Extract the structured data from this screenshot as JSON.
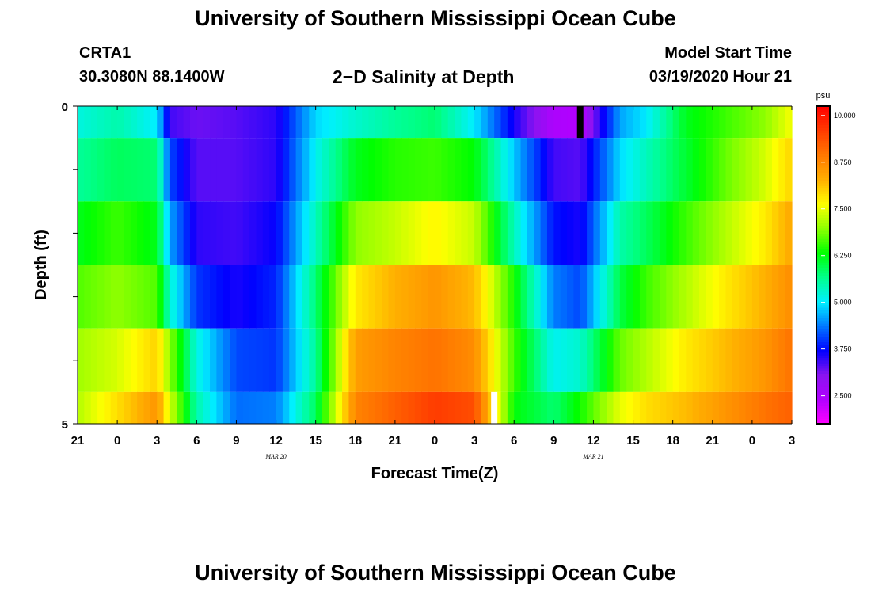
{
  "page_title": "University of Southern Mississippi Ocean Cube",
  "footer_title": "University of Southern Mississippi Ocean Cube",
  "station": {
    "name": "CRTA1",
    "coords": "30.3080N 88.1400W"
  },
  "model": {
    "label": "Model Start Time",
    "start": "03/19/2020 Hour 21"
  },
  "colors": {
    "palette": [
      "#ff00ff",
      "#b200ff",
      "#8a14f0",
      "#0000ff",
      "#0078ff",
      "#00f0ff",
      "#00ff8c",
      "#00ff00",
      "#8cff00",
      "#ffff00",
      "#ffb000",
      "#ff7800",
      "#ff3c00",
      "#ff0000"
    ],
    "marker_black": "#000000",
    "marker_white": "#ffffff"
  },
  "chart_data": {
    "type": "heatmap",
    "title": "2−D Salinity at Depth",
    "xlabel": "Forecast Time(Z)",
    "ylabel": "Depth (ft)",
    "x_tick_labels": [
      "21",
      "0",
      "3",
      "6",
      "9",
      "12",
      "15",
      "18",
      "21",
      "0",
      "3",
      "6",
      "9",
      "12",
      "15",
      "18",
      "21",
      "0",
      "3"
    ],
    "date_labels": [
      {
        "text": "MAR 20",
        "hour": 15
      },
      {
        "text": "MAR 21",
        "hour": 39
      }
    ],
    "x_range_hours": [
      0,
      54
    ],
    "y_range_ft": [
      0,
      5
    ],
    "y_tick_labels": [
      "0",
      "5"
    ],
    "y_minor_ticks": [
      0,
      1,
      2,
      3,
      4,
      5
    ],
    "depth_levels": [
      0,
      1,
      2,
      3,
      4,
      5
    ],
    "time_knots_hours": [
      0,
      3,
      6,
      7,
      9,
      12,
      15,
      18,
      21,
      24,
      27,
      30,
      33,
      36,
      38,
      41,
      43,
      46,
      49,
      52,
      54
    ],
    "values": [
      [
        5.2,
        5.5,
        5.0,
        3.4,
        3.2,
        3.3,
        3.5,
        4.9,
        5.3,
        5.6,
        5.8,
        5.0,
        3.6,
        2.5,
        2.4,
        4.6,
        5.0,
        6.2,
        6.6,
        7.0,
        7.6
      ],
      [
        5.6,
        5.9,
        5.8,
        4.1,
        3.3,
        3.3,
        3.5,
        5.1,
        6.2,
        6.5,
        6.6,
        6.3,
        4.8,
        3.4,
        3.3,
        4.9,
        5.4,
        6.1,
        6.8,
        7.4,
        8.0
      ],
      [
        6.2,
        6.6,
        6.2,
        4.6,
        3.5,
        3.4,
        3.7,
        5.4,
        7.0,
        7.3,
        7.7,
        7.3,
        5.4,
        3.8,
        3.6,
        5.5,
        5.9,
        6.6,
        7.2,
        7.8,
        8.4
      ],
      [
        6.7,
        7.0,
        6.7,
        5.3,
        4.0,
        3.6,
        3.9,
        5.8,
        7.8,
        8.3,
        8.6,
        8.2,
        6.4,
        4.4,
        4.1,
        6.0,
        6.6,
        7.2,
        7.8,
        8.3,
        8.7
      ],
      [
        7.1,
        7.4,
        8.0,
        7.0,
        5.2,
        4.1,
        4.0,
        5.6,
        8.5,
        8.8,
        9.0,
        8.7,
        6.6,
        5.1,
        5.3,
        6.8,
        7.2,
        7.8,
        8.2,
        8.6,
        9.0
      ],
      [
        7.2,
        7.9,
        8.6,
        7.4,
        5.5,
        4.3,
        4.4,
        5.9,
        8.8,
        9.2,
        9.6,
        9.4,
        6.3,
        5.8,
        6.4,
        7.5,
        7.9,
        8.2,
        8.6,
        9.0,
        9.2
      ]
    ],
    "markers": [
      {
        "hour": 38,
        "depth_from": 0,
        "depth_to": 0.5,
        "color": "black"
      },
      {
        "hour": 31.5,
        "depth_from": 4.5,
        "depth_to": 5,
        "color": "white"
      }
    ],
    "colorbar": {
      "unit": "psu",
      "range": [
        1.75,
        10.25
      ],
      "ticks": [
        "2.500",
        "3.750",
        "5.000",
        "6.250",
        "7.500",
        "8.750",
        "10.000"
      ]
    }
  }
}
